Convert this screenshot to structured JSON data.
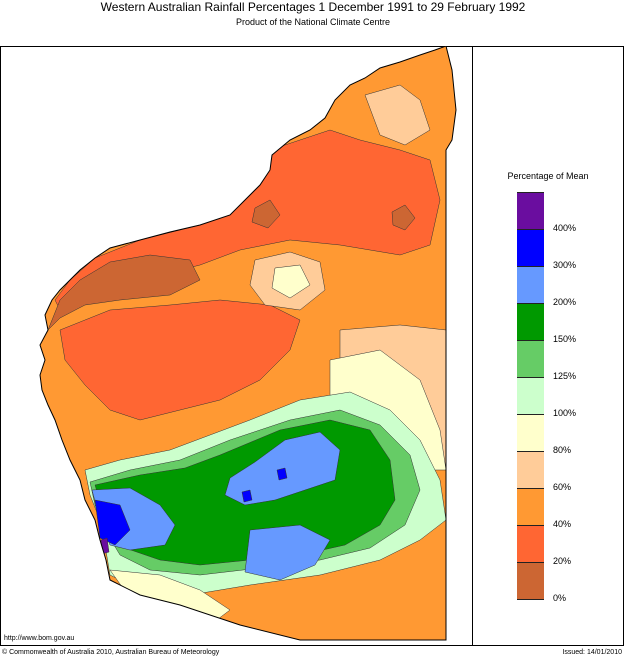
{
  "header": {
    "title": "Western Australian Rainfall Percentages 1 December 1991 to 29 February 1992",
    "subtitle": "Product of the National Climate Centre"
  },
  "legend": {
    "title": "Percentage of Mean",
    "bins": [
      {
        "color": "#6a0d9f"
      },
      {
        "color": "#0000ff"
      },
      {
        "color": "#6699ff"
      },
      {
        "color": "#009900"
      },
      {
        "color": "#66cc66"
      },
      {
        "color": "#ccffcc"
      },
      {
        "color": "#ffffcc"
      },
      {
        "color": "#ffcc99"
      },
      {
        "color": "#ff9933"
      },
      {
        "color": "#ff6633"
      },
      {
        "color": "#cc6633"
      }
    ],
    "labels": [
      "400%",
      "300%",
      "200%",
      "150%",
      "125%",
      "100%",
      "80%",
      "60%",
      "40%",
      "20%",
      "0%"
    ]
  },
  "footer": {
    "url": "http://www.bom.gov.au",
    "copyright": "© Commonwealth of Australia 2010, Australian Bureau of Meteorology",
    "issued": "Issued: 14/01/2010"
  }
}
